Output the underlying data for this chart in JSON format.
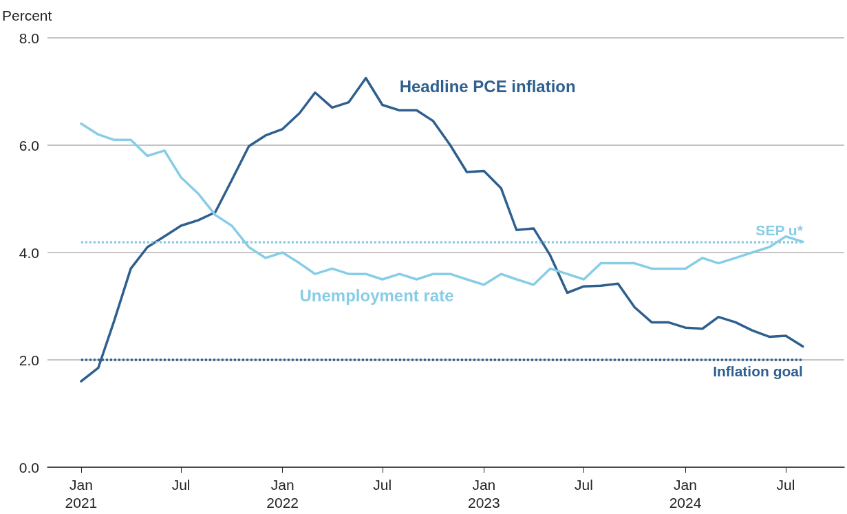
{
  "chart_data": {
    "type": "line",
    "ylabel": "Percent",
    "x": [
      "2021-01",
      "2021-02",
      "2021-03",
      "2021-04",
      "2021-05",
      "2021-06",
      "2021-07",
      "2021-08",
      "2021-09",
      "2021-10",
      "2021-11",
      "2021-12",
      "2022-01",
      "2022-02",
      "2022-03",
      "2022-04",
      "2022-05",
      "2022-06",
      "2022-07",
      "2022-08",
      "2022-09",
      "2022-10",
      "2022-11",
      "2022-12",
      "2023-01",
      "2023-02",
      "2023-03",
      "2023-04",
      "2023-05",
      "2023-06",
      "2023-07",
      "2023-08",
      "2023-09",
      "2023-10",
      "2023-11",
      "2023-12",
      "2024-01",
      "2024-02",
      "2024-03",
      "2024-04",
      "2024-05",
      "2024-06",
      "2024-07",
      "2024-08"
    ],
    "series": [
      {
        "name": "Headline PCE inflation",
        "color": "#2e5f8e",
        "values": [
          1.6,
          1.85,
          2.7,
          3.7,
          4.1,
          4.3,
          4.5,
          4.6,
          4.75,
          5.35,
          5.98,
          6.18,
          6.3,
          6.6,
          6.98,
          6.7,
          6.8,
          7.25,
          6.75,
          6.65,
          6.65,
          6.45,
          6.0,
          5.5,
          5.52,
          5.2,
          4.42,
          4.45,
          3.95,
          3.25,
          3.37,
          3.38,
          3.42,
          2.98,
          2.7,
          2.7,
          2.6,
          2.58,
          2.8,
          2.7,
          2.55,
          2.43,
          2.45,
          2.25
        ]
      },
      {
        "name": "Unemployment rate",
        "color": "#87cde6",
        "values": [
          6.4,
          6.2,
          6.1,
          6.1,
          5.8,
          5.9,
          5.4,
          5.1,
          4.7,
          4.5,
          4.1,
          3.9,
          4.0,
          3.8,
          3.6,
          3.7,
          3.6,
          3.6,
          3.5,
          3.6,
          3.5,
          3.6,
          3.6,
          3.5,
          3.4,
          3.6,
          3.5,
          3.4,
          3.7,
          3.6,
          3.5,
          3.8,
          3.8,
          3.8,
          3.7,
          3.7,
          3.7,
          3.9,
          3.8,
          3.9,
          4.0,
          4.1,
          4.3,
          4.2
        ]
      }
    ],
    "ref_lines": [
      {
        "axis": "y",
        "value": 4.2,
        "label": "SEP u*",
        "color": "#87cde6",
        "line_style": "dotted"
      },
      {
        "axis": "y",
        "value": 2.0,
        "label": "Inflation goal",
        "color": "#2e5f8e",
        "line_style": "dotted"
      }
    ],
    "xlim": [
      "2020-11-01",
      "2024-10-15"
    ],
    "xticks": [
      {
        "value": "2021-01",
        "label": "Jan\n2021"
      },
      {
        "value": "2021-07",
        "label": "Jul"
      },
      {
        "value": "2022-01",
        "label": "Jan\n2022"
      },
      {
        "value": "2022-07",
        "label": "Jul"
      },
      {
        "value": "2023-01",
        "label": "Jan\n2023"
      },
      {
        "value": "2023-07",
        "label": "Jul"
      },
      {
        "value": "2024-01",
        "label": "Jan\n2024"
      },
      {
        "value": "2024-07",
        "label": "Jul"
      }
    ],
    "ylim": [
      0,
      8
    ],
    "yticks": [
      {
        "value": 0,
        "label": "0.0"
      },
      {
        "value": 2,
        "label": "2.0"
      },
      {
        "value": 4,
        "label": "4.0"
      },
      {
        "value": 6,
        "label": "6.0"
      },
      {
        "value": 8,
        "label": "8.0"
      }
    ],
    "grid": "y",
    "legend": false,
    "marker": "none",
    "line_style": "solid"
  }
}
